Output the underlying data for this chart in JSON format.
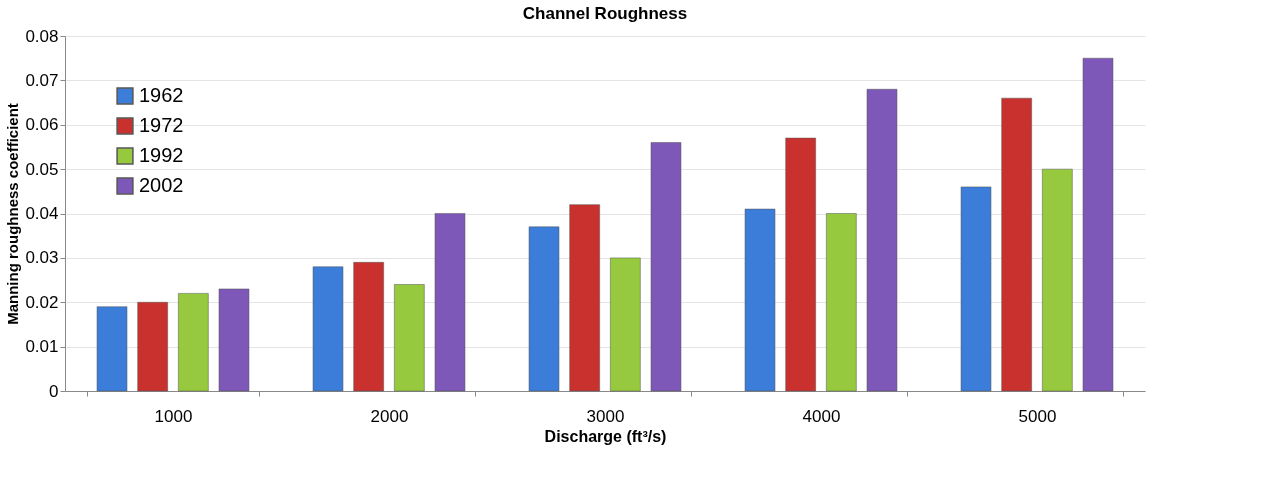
{
  "chart_data": {
    "type": "bar",
    "title": "Channel Roughness",
    "xlabel": "Discharge (ft³/s)",
    "ylabel": "Manning roughness coefficient",
    "categories": [
      "1000",
      "2000",
      "3000",
      "4000",
      "5000"
    ],
    "series": [
      {
        "name": "1962",
        "color": "#3b7dd8",
        "values": [
          0.019,
          0.028,
          0.037,
          0.041,
          0.046
        ]
      },
      {
        "name": "1972",
        "color": "#c8312e",
        "values": [
          0.02,
          0.029,
          0.042,
          0.057,
          0.066
        ]
      },
      {
        "name": "1992",
        "color": "#96c93d",
        "values": [
          0.022,
          0.024,
          0.03,
          0.04,
          0.05
        ]
      },
      {
        "name": "2002",
        "color": "#7d58b8",
        "values": [
          0.023,
          0.04,
          0.056,
          0.068,
          0.075
        ]
      }
    ],
    "ylim": [
      0,
      0.08
    ],
    "yticks": [
      0,
      0.01,
      0.02,
      0.03,
      0.04,
      0.05,
      0.06,
      0.07,
      0.08
    ],
    "grid": "y",
    "legend": "top left"
  }
}
